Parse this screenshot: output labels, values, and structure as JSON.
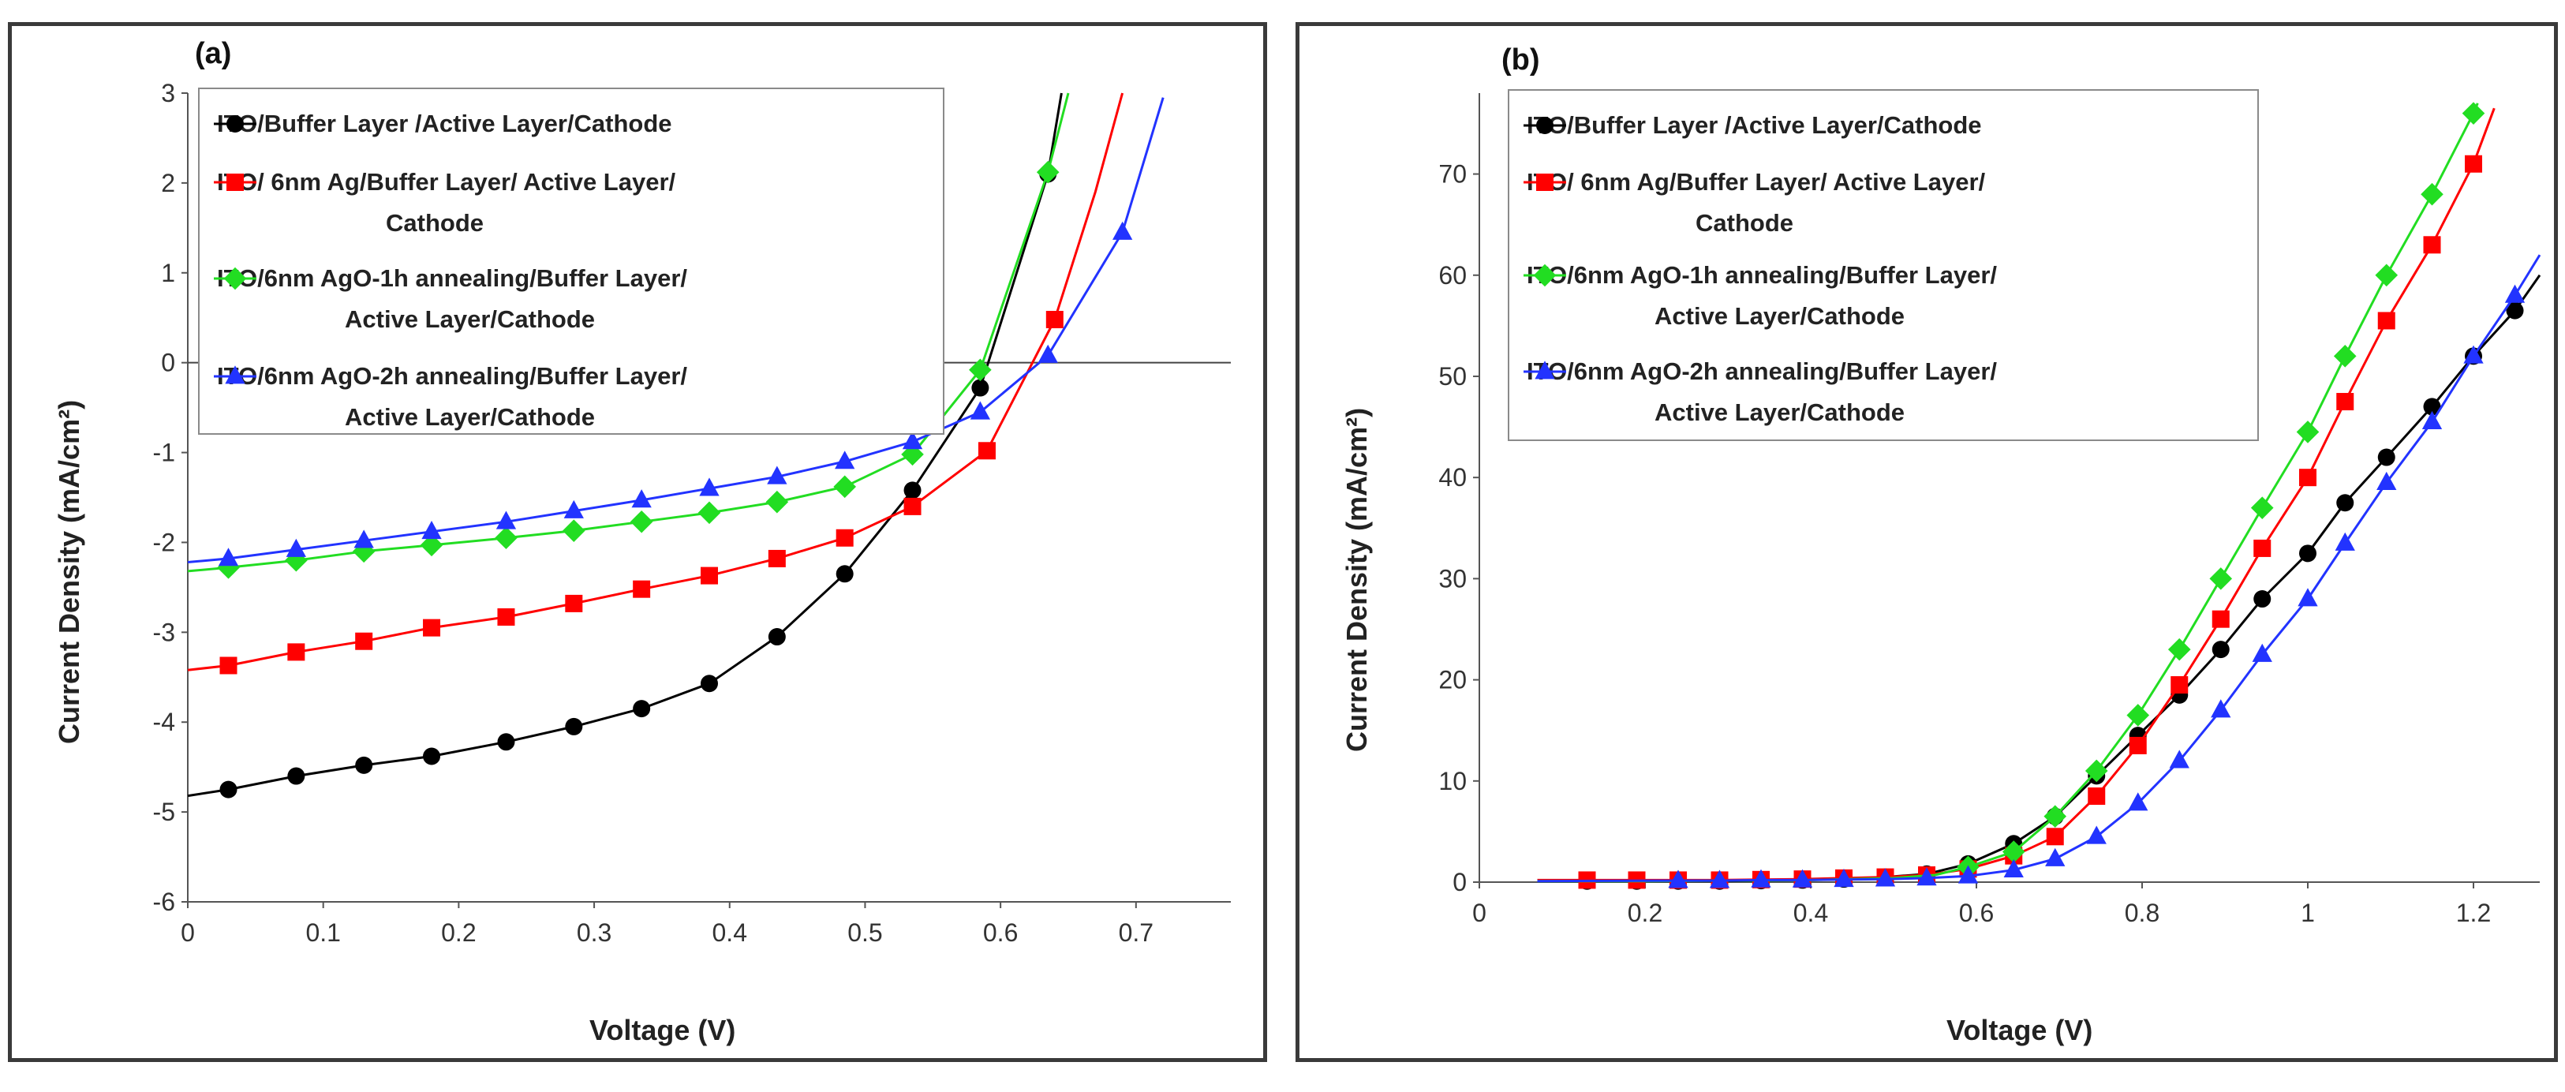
{
  "chart_data": [
    {
      "panel": "(a)",
      "type": "line",
      "xlabel": "Voltage (V)",
      "ylabel": "Current Density (mA/cm²)",
      "xlim": [
        0,
        0.77
      ],
      "ylim": [
        -6,
        3
      ],
      "xticks": [
        0,
        0.1,
        0.2,
        0.3,
        0.4,
        0.5,
        0.6,
        0.7
      ],
      "xtick_labels": [
        "0",
        "0.1",
        "0.2",
        "0.3",
        "0.4",
        "0.5",
        "0.6",
        "0.7"
      ],
      "yticks": [
        -6,
        -5,
        -4,
        -3,
        -2,
        -1,
        0,
        1,
        2,
        3
      ],
      "ytick_labels": [
        "-6",
        "-5",
        "-4",
        "-3",
        "-2",
        "-1",
        "0",
        "1",
        "2",
        "3"
      ],
      "legend_position": "top-left",
      "series": [
        {
          "name": "ITO/Buffer Layer /Active Layer/Cathode",
          "label_lines": [
            "ITO/Buffer Layer /Active Layer/Cathode"
          ],
          "color": "#000000",
          "marker": "circle",
          "x": [
            0.03,
            0.08,
            0.13,
            0.18,
            0.235,
            0.285,
            0.335,
            0.385,
            0.435,
            0.485,
            0.535,
            0.585,
            0.635
          ],
          "y": [
            -4.75,
            -4.6,
            -4.48,
            -4.38,
            -4.22,
            -4.05,
            -3.85,
            -3.57,
            -3.05,
            -2.35,
            -1.42,
            -0.28,
            2.1
          ],
          "curve_x": [
            0,
            0.03,
            0.08,
            0.13,
            0.18,
            0.235,
            0.285,
            0.335,
            0.385,
            0.435,
            0.485,
            0.535,
            0.585,
            0.635,
            0.645
          ],
          "curve_y": [
            -4.82,
            -4.75,
            -4.6,
            -4.48,
            -4.38,
            -4.22,
            -4.05,
            -3.85,
            -3.57,
            -3.05,
            -2.35,
            -1.42,
            -0.28,
            2.1,
            3.0
          ]
        },
        {
          "name": "ITO/ 6nm Ag/Buffer Layer/ Active Layer/ Cathode",
          "label_lines": [
            "ITO/ 6nm Ag/Buffer Layer/ Active Layer/",
            "Cathode"
          ],
          "color": "#ff0000",
          "marker": "square",
          "x": [
            0.03,
            0.08,
            0.13,
            0.18,
            0.235,
            0.285,
            0.335,
            0.385,
            0.435,
            0.485,
            0.535,
            0.59,
            0.64
          ],
          "y": [
            -3.37,
            -3.22,
            -3.1,
            -2.95,
            -2.83,
            -2.68,
            -2.52,
            -2.37,
            -2.18,
            -1.95,
            -1.6,
            -0.98,
            0.48
          ],
          "curve_x": [
            0,
            0.03,
            0.08,
            0.13,
            0.18,
            0.235,
            0.285,
            0.335,
            0.385,
            0.435,
            0.485,
            0.535,
            0.59,
            0.64,
            0.67,
            0.69
          ],
          "curve_y": [
            -3.42,
            -3.37,
            -3.22,
            -3.1,
            -2.95,
            -2.83,
            -2.68,
            -2.52,
            -2.37,
            -2.18,
            -1.95,
            -1.6,
            -0.98,
            0.48,
            1.9,
            3.0
          ]
        },
        {
          "name": "ITO/6nm AgO-1h annealing/Buffer Layer/ Active Layer/Cathode",
          "label_lines": [
            "ITO/6nm AgO-1h annealing/Buffer Layer/",
            "Active Layer/Cathode"
          ],
          "color": "#22dd22",
          "marker": "diamond",
          "x": [
            0.03,
            0.08,
            0.13,
            0.18,
            0.235,
            0.285,
            0.335,
            0.385,
            0.435,
            0.485,
            0.535,
            0.585,
            0.635
          ],
          "y": [
            -2.28,
            -2.2,
            -2.1,
            -2.03,
            -1.95,
            -1.87,
            -1.77,
            -1.67,
            -1.55,
            -1.38,
            -1.02,
            -0.08,
            2.12
          ],
          "curve_x": [
            0,
            0.03,
            0.08,
            0.13,
            0.18,
            0.235,
            0.285,
            0.335,
            0.385,
            0.435,
            0.485,
            0.535,
            0.585,
            0.635,
            0.65
          ],
          "curve_y": [
            -2.32,
            -2.28,
            -2.2,
            -2.1,
            -2.03,
            -1.95,
            -1.87,
            -1.77,
            -1.67,
            -1.55,
            -1.38,
            -1.02,
            -0.08,
            2.12,
            3.0
          ]
        },
        {
          "name": "ITO/6nm AgO-2h annealing/Buffer Layer/ Active Layer/Cathode",
          "label_lines": [
            "ITO/6nm AgO-2h annealing/Buffer Layer/",
            "Active Layer/Cathode"
          ],
          "color": "#2233ff",
          "marker": "triangle",
          "x": [
            0.03,
            0.08,
            0.13,
            0.18,
            0.235,
            0.285,
            0.335,
            0.385,
            0.435,
            0.485,
            0.535,
            0.585,
            0.635,
            0.69
          ],
          "y": [
            -2.18,
            -2.08,
            -1.98,
            -1.88,
            -1.77,
            -1.65,
            -1.53,
            -1.4,
            -1.27,
            -1.1,
            -0.88,
            -0.55,
            0.08,
            1.45
          ],
          "curve_x": [
            0,
            0.03,
            0.08,
            0.13,
            0.18,
            0.235,
            0.285,
            0.335,
            0.385,
            0.435,
            0.485,
            0.535,
            0.585,
            0.635,
            0.69,
            0.72
          ],
          "curve_y": [
            -2.22,
            -2.18,
            -2.08,
            -1.98,
            -1.88,
            -1.77,
            -1.65,
            -1.53,
            -1.4,
            -1.27,
            -1.1,
            -0.88,
            -0.55,
            0.08,
            1.45,
            2.95
          ]
        }
      ]
    },
    {
      "panel": "(b)",
      "type": "line",
      "xlabel": "Voltage (V)",
      "ylabel": "Current Density (mA/cm²)",
      "xlim": [
        0,
        1.28
      ],
      "ylim": [
        0,
        78
      ],
      "xticks": [
        0,
        0.2,
        0.4,
        0.6,
        0.8,
        1,
        1.2
      ],
      "xtick_labels": [
        "0",
        "0.2",
        "0.4",
        "0.6",
        "0.8",
        "1",
        "1.2"
      ],
      "yticks": [
        0,
        10,
        20,
        30,
        40,
        50,
        60,
        70
      ],
      "ytick_labels": [
        "0",
        "10",
        "20",
        "30",
        "40",
        "50",
        "60",
        "70"
      ],
      "legend_position": "top-left",
      "series": [
        {
          "name": "ITO/Buffer Layer /Active Layer/Cathode",
          "label_lines": [
            "ITO/Buffer Layer /Active Layer/Cathode"
          ],
          "color": "#000000",
          "marker": "circle",
          "x": [
            0.13,
            0.19,
            0.24,
            0.29,
            0.34,
            0.39,
            0.44,
            0.49,
            0.54,
            0.59,
            0.645,
            0.695,
            0.745,
            0.795,
            0.845,
            0.895,
            0.945,
            1.0,
            1.045,
            1.095,
            1.15,
            1.2,
            1.25
          ],
          "y": [
            0.1,
            0.1,
            0.1,
            0.1,
            0.15,
            0.2,
            0.3,
            0.5,
            0.8,
            1.8,
            3.8,
            6.5,
            10.5,
            14.5,
            18.5,
            23,
            28,
            32.5,
            37.5,
            42,
            47,
            52,
            56.5
          ],
          "curve_x": [
            0.07,
            0.13,
            0.19,
            0.24,
            0.29,
            0.34,
            0.39,
            0.44,
            0.49,
            0.54,
            0.59,
            0.645,
            0.695,
            0.745,
            0.795,
            0.845,
            0.895,
            0.945,
            1.0,
            1.045,
            1.095,
            1.15,
            1.2,
            1.25,
            1.28
          ],
          "curve_y": [
            0.1,
            0.1,
            0.1,
            0.1,
            0.1,
            0.15,
            0.2,
            0.3,
            0.5,
            0.8,
            1.8,
            3.8,
            6.5,
            10.5,
            14.5,
            18.5,
            23,
            28,
            32.5,
            37.5,
            42,
            47,
            52,
            56.5,
            60
          ]
        },
        {
          "name": "ITO/ 6nm Ag/Buffer Layer/ Active Layer/ Cathode",
          "label_lines": [
            "ITO/ 6nm Ag/Buffer Layer/ Active Layer/",
            "Cathode"
          ],
          "color": "#ff0000",
          "marker": "square",
          "x": [
            0.13,
            0.19,
            0.24,
            0.29,
            0.34,
            0.39,
            0.44,
            0.49,
            0.54,
            0.59,
            0.645,
            0.695,
            0.745,
            0.795,
            0.845,
            0.895,
            0.945,
            1.0,
            1.045,
            1.095,
            1.15,
            1.2
          ],
          "y": [
            0.2,
            0.2,
            0.2,
            0.2,
            0.25,
            0.3,
            0.4,
            0.5,
            0.7,
            1.3,
            2.6,
            4.5,
            8.5,
            13.5,
            19.5,
            26,
            33,
            40,
            47.5,
            55.5,
            63,
            71
          ],
          "curve_x": [
            0.07,
            0.13,
            0.19,
            0.24,
            0.29,
            0.34,
            0.39,
            0.44,
            0.49,
            0.54,
            0.59,
            0.645,
            0.695,
            0.745,
            0.795,
            0.845,
            0.895,
            0.945,
            1.0,
            1.045,
            1.095,
            1.15,
            1.2,
            1.225
          ],
          "curve_y": [
            0.2,
            0.2,
            0.2,
            0.2,
            0.2,
            0.25,
            0.3,
            0.4,
            0.5,
            0.7,
            1.3,
            2.6,
            4.5,
            8.5,
            13.5,
            19.5,
            26,
            33,
            40,
            47.5,
            55.5,
            63,
            71,
            76.5
          ]
        },
        {
          "name": "ITO/6nm AgO-1h annealing/Buffer Layer/ Active Layer/Cathode",
          "label_lines": [
            "ITO/6nm AgO-1h annealing/Buffer Layer/",
            "Active Layer/Cathode"
          ],
          "color": "#22dd22",
          "marker": "diamond",
          "x": [
            0.59,
            0.645,
            0.695,
            0.745,
            0.795,
            0.845,
            0.895,
            0.945,
            1.0,
            1.045,
            1.095,
            1.15,
            1.2
          ],
          "y": [
            1.5,
            3.0,
            6.5,
            11.0,
            16.5,
            23,
            30,
            37,
            44.5,
            52,
            60,
            68,
            76
          ],
          "curve_x": [
            0.07,
            0.2,
            0.4,
            0.5,
            0.55,
            0.59,
            0.645,
            0.695,
            0.745,
            0.795,
            0.845,
            0.895,
            0.945,
            1.0,
            1.045,
            1.095,
            1.15,
            1.2,
            1.205
          ],
          "curve_y": [
            0.1,
            0.1,
            0.2,
            0.4,
            0.7,
            1.5,
            3.0,
            6.5,
            11.0,
            16.5,
            23,
            30,
            37,
            44.5,
            52,
            60,
            68,
            76,
            77
          ]
        },
        {
          "name": "ITO/6nm AgO-2h annealing/Buffer Layer/ Active Layer/Cathode",
          "label_lines": [
            "ITO/6nm AgO-2h annealing/Buffer Layer/",
            "Active Layer/Cathode"
          ],
          "color": "#2233ff",
          "marker": "triangle",
          "x": [
            0.24,
            0.29,
            0.34,
            0.39,
            0.44,
            0.49,
            0.54,
            0.59,
            0.645,
            0.695,
            0.745,
            0.795,
            0.845,
            0.895,
            0.945,
            1.0,
            1.045,
            1.095,
            1.15,
            1.2,
            1.25
          ],
          "y": [
            0.15,
            0.15,
            0.2,
            0.2,
            0.25,
            0.3,
            0.4,
            0.6,
            1.2,
            2.3,
            4.5,
            7.8,
            12,
            17,
            22.5,
            28,
            33.5,
            39.5,
            45.5,
            52,
            58
          ],
          "curve_x": [
            0.07,
            0.24,
            0.29,
            0.34,
            0.39,
            0.44,
            0.49,
            0.54,
            0.59,
            0.645,
            0.695,
            0.745,
            0.795,
            0.845,
            0.895,
            0.945,
            1.0,
            1.045,
            1.095,
            1.15,
            1.2,
            1.25,
            1.28
          ],
          "curve_y": [
            0.1,
            0.15,
            0.15,
            0.2,
            0.2,
            0.25,
            0.3,
            0.4,
            0.6,
            1.2,
            2.3,
            4.5,
            7.8,
            12,
            17,
            22.5,
            28,
            33.5,
            39.5,
            45.5,
            52,
            58,
            62
          ]
        }
      ]
    }
  ]
}
